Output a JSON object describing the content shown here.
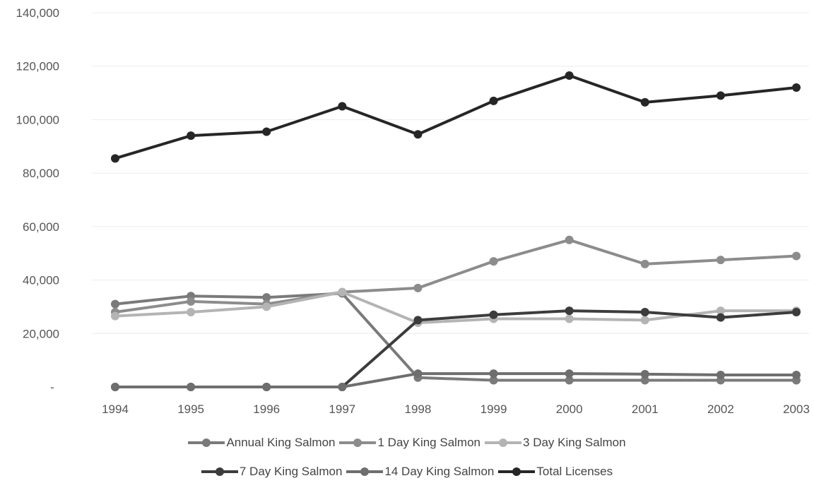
{
  "chart_data": {
    "type": "line",
    "categories": [
      "1994",
      "1995",
      "1996",
      "1997",
      "1998",
      "1999",
      "2000",
      "2001",
      "2002",
      "2003"
    ],
    "y_ticks": [
      {
        "value": 0,
        "label": "-"
      },
      {
        "value": 20000,
        "label": "20,000"
      },
      {
        "value": 40000,
        "label": "40,000"
      },
      {
        "value": 60000,
        "label": "60,000"
      },
      {
        "value": 80000,
        "label": "80,000"
      },
      {
        "value": 100000,
        "label": "100,000"
      },
      {
        "value": 120000,
        "label": "120,000"
      },
      {
        "value": 140000,
        "label": "140,000"
      }
    ],
    "ylim": [
      0,
      140000
    ],
    "grid": true,
    "legend_position": "bottom",
    "series": [
      {
        "name": "Annual King Salmon",
        "color": "#7a7a7a",
        "values": [
          31000,
          34000,
          33500,
          35000,
          3500,
          2500,
          2500,
          2500,
          2500,
          2500
        ]
      },
      {
        "name": "1 Day King Salmon",
        "color": "#8c8c8c",
        "values": [
          28000,
          32000,
          31000,
          35500,
          37000,
          47000,
          55000,
          46000,
          47500,
          49000
        ]
      },
      {
        "name": "3 Day King Salmon",
        "color": "#b4b4b4",
        "values": [
          26500,
          28000,
          30000,
          35500,
          24000,
          25500,
          25500,
          25000,
          28500,
          28500
        ]
      },
      {
        "name": "7 Day King Salmon",
        "color": "#3c3c3c",
        "values": [
          0,
          0,
          0,
          0,
          25000,
          27000,
          28500,
          28000,
          26000,
          28000
        ]
      },
      {
        "name": "14 Day King Salmon",
        "color": "#6e6e6e",
        "values": [
          0,
          0,
          0,
          0,
          5000,
          5000,
          5000,
          4800,
          4500,
          4500
        ]
      },
      {
        "name": "Total Licenses",
        "color": "#262626",
        "values": [
          85500,
          94000,
          95500,
          105000,
          94500,
          107000,
          116500,
          106500,
          109000,
          112000
        ]
      }
    ]
  }
}
